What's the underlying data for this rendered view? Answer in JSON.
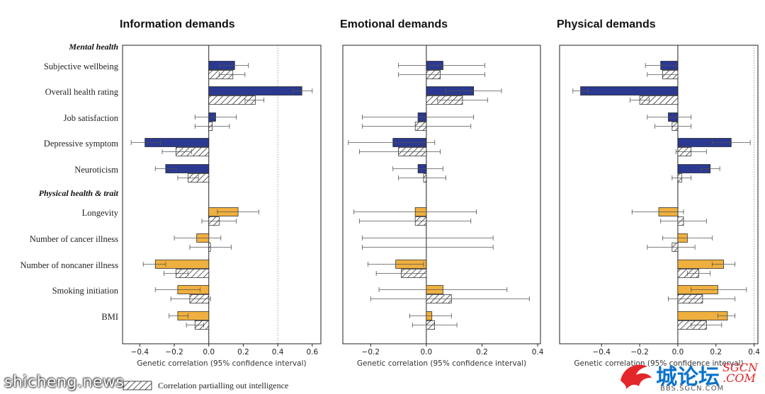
{
  "chart_data": {
    "type": "bar",
    "orientation": "horizontal",
    "categories": [
      "Subjective wellbeing",
      "Overall health rating",
      "Job satisfaction",
      "Depressive symptom",
      "Neuroticism",
      "Longevity",
      "Number of cancer illness",
      "Number of noncaner illness",
      "Smoking initiation",
      "BMI"
    ],
    "groups": [
      {
        "label": "Mental health",
        "categories": [
          "Subjective wellbeing",
          "Overall health rating",
          "Job satisfaction",
          "Depressive symptom",
          "Neuroticism"
        ]
      },
      {
        "label": "Physical health & trait",
        "categories": [
          "Longevity",
          "Number of cancer illness",
          "Number of noncaner illness",
          "Smoking initiation",
          "BMI"
        ]
      }
    ],
    "xlabel": "Genetic correlation (95% confidence interval)",
    "legend": {
      "hatched_label": "Correlation partialling out intelligence",
      "placement": "bottom"
    },
    "colors": {
      "mental": "#2b3990",
      "physical": "#f0b03f",
      "hatch": "#333333"
    },
    "panels": [
      {
        "title": "Information demands",
        "xlim": [
          -0.5,
          0.65
        ],
        "xticks": [
          -0.4,
          -0.2,
          0.0,
          0.2,
          0.4,
          0.6
        ],
        "xtick_labels": [
          "−0.4",
          "−0.2",
          "0.0",
          "0.2",
          "0.4",
          "0.6"
        ],
        "dotted_line": 0.4,
        "solid": [
          0.15,
          0.54,
          0.04,
          -0.37,
          -0.25,
          0.17,
          -0.07,
          -0.31,
          -0.18,
          -0.18
        ],
        "solid_ci": [
          [
            0.06,
            0.23
          ],
          [
            0.49,
            0.6
          ],
          [
            -0.08,
            0.16
          ],
          [
            -0.45,
            -0.28
          ],
          [
            -0.31,
            -0.19
          ],
          [
            0.05,
            0.29
          ],
          [
            -0.2,
            0.07
          ],
          [
            -0.38,
            -0.25
          ],
          [
            -0.31,
            -0.05
          ],
          [
            -0.23,
            -0.12
          ]
        ],
        "hatched": [
          0.14,
          0.27,
          0.02,
          -0.19,
          -0.12,
          0.06,
          0.01,
          -0.19,
          -0.11,
          -0.08
        ],
        "hatched_ci": [
          [
            0.06,
            0.21
          ],
          [
            0.21,
            0.32
          ],
          [
            -0.08,
            0.12
          ],
          [
            -0.27,
            -0.1
          ],
          [
            -0.18,
            -0.06
          ],
          [
            -0.04,
            0.16
          ],
          [
            -0.11,
            0.13
          ],
          [
            -0.26,
            -0.12
          ],
          [
            -0.22,
            0.01
          ],
          [
            -0.13,
            -0.03
          ]
        ]
      },
      {
        "title": "Emotional demands",
        "xlim": [
          -0.3,
          0.41
        ],
        "xticks": [
          -0.2,
          0.0,
          0.2,
          0.4
        ],
        "xtick_labels": [
          "−0.2",
          "0.0",
          "0.2",
          "0.4"
        ],
        "dotted_line": null,
        "solid": [
          0.06,
          0.17,
          -0.03,
          -0.12,
          -0.03,
          -0.04,
          0.0,
          -0.11,
          0.06,
          0.02
        ],
        "solid_ci": [
          [
            -0.1,
            0.21
          ],
          [
            0.07,
            0.27
          ],
          [
            -0.23,
            0.17
          ],
          [
            -0.28,
            0.03
          ],
          [
            -0.12,
            0.06
          ],
          [
            -0.26,
            0.18
          ],
          [
            -0.23,
            0.24
          ],
          [
            -0.21,
            -0.01
          ],
          [
            -0.17,
            0.29
          ],
          [
            -0.06,
            0.09
          ]
        ],
        "hatched": [
          0.05,
          0.13,
          -0.04,
          -0.1,
          -0.01,
          -0.04,
          0.0,
          -0.09,
          0.09,
          0.03
        ],
        "hatched_ci": [
          [
            -0.1,
            0.21
          ],
          [
            0.04,
            0.22
          ],
          [
            -0.23,
            0.16
          ],
          [
            -0.24,
            0.05
          ],
          [
            -0.1,
            0.07
          ],
          [
            -0.24,
            0.16
          ],
          [
            -0.23,
            0.24
          ],
          [
            -0.18,
            0.0
          ],
          [
            -0.2,
            0.37
          ],
          [
            -0.05,
            0.11
          ]
        ]
      },
      {
        "title": "Physical demands",
        "xlim": [
          -0.62,
          0.42
        ],
        "xticks": [
          -0.4,
          -0.2,
          0.0,
          0.2,
          0.4
        ],
        "xtick_labels": [
          "−0.4",
          "−0.2",
          "0.0",
          "0.2",
          "0.4"
        ],
        "dotted_line": 0.4,
        "solid": [
          -0.09,
          -0.51,
          -0.05,
          0.28,
          0.17,
          -0.1,
          0.05,
          0.24,
          0.21,
          0.26
        ],
        "solid_ci": [
          [
            -0.17,
            -0.01
          ],
          [
            -0.55,
            -0.47
          ],
          [
            -0.16,
            0.07
          ],
          [
            0.18,
            0.38
          ],
          [
            0.12,
            0.22
          ],
          [
            -0.24,
            0.03
          ],
          [
            -0.08,
            0.18
          ],
          [
            0.18,
            0.3
          ],
          [
            0.07,
            0.36
          ],
          [
            0.21,
            0.3
          ]
        ],
        "hatched": [
          -0.08,
          -0.2,
          -0.03,
          0.07,
          0.02,
          0.03,
          -0.03,
          0.11,
          0.13,
          0.15
        ],
        "hatched_ci": [
          [
            -0.16,
            0.0
          ],
          [
            -0.25,
            -0.15
          ],
          [
            -0.12,
            0.07
          ],
          [
            -0.01,
            0.15
          ],
          [
            -0.03,
            0.07
          ],
          [
            -0.09,
            0.15
          ],
          [
            -0.16,
            0.09
          ],
          [
            0.05,
            0.17
          ],
          [
            -0.05,
            0.3
          ],
          [
            0.07,
            0.23
          ]
        ]
      }
    ]
  },
  "watermarks": {
    "left": "shicheng.news",
    "right_main": "城论坛",
    "right_sgcn": "SGCN",
    "right_com": ".COM",
    "right_domain": "BBS.SGCN.COM"
  }
}
